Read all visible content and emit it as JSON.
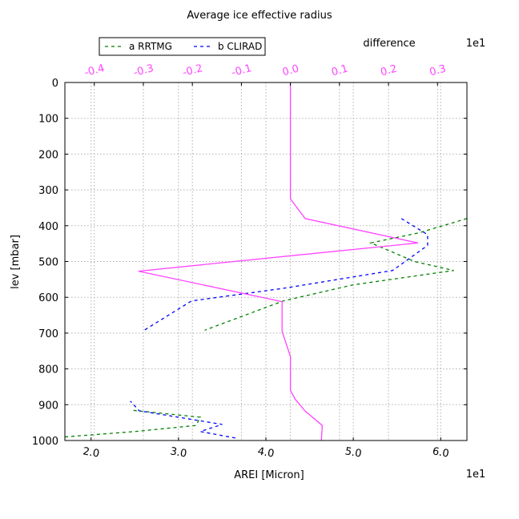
{
  "chart_data": {
    "type": "line",
    "title": "Average ice effective radius",
    "xlabel": "AREI [Micron]",
    "x_offset_text": "1e1",
    "ylabel": "lev [mbar]",
    "top_axis_label": "difference",
    "top_offset_text": "1e1",
    "xlim": [
      1.7,
      6.3
    ],
    "ylim": [
      1000,
      0
    ],
    "top_xlim": [
      -0.46,
      0.36
    ],
    "x_ticks": [
      2.0,
      3.0,
      4.0,
      5.0,
      6.0
    ],
    "x_tick_labels": [
      "2.0",
      "3.0",
      "4.0",
      "5.0",
      "6.0"
    ],
    "y_ticks": [
      0,
      100,
      200,
      300,
      400,
      500,
      600,
      700,
      800,
      900,
      1000
    ],
    "y_tick_labels": [
      "0",
      "100",
      "200",
      "300",
      "400",
      "500",
      "600",
      "700",
      "800",
      "900",
      "1000"
    ],
    "top_ticks": [
      -0.4,
      -0.3,
      -0.2,
      -0.1,
      0.0,
      0.1,
      0.2,
      0.3
    ],
    "top_tick_labels": [
      "-0.4",
      "-0.3",
      "-0.2",
      "-0.1",
      "0.0",
      "0.1",
      "0.2",
      "0.3"
    ],
    "grid": true,
    "legend_placement": "above plot, top-left",
    "series": [
      {
        "name": "a RRTMG",
        "color": "#008000",
        "style": "dashed",
        "axis": "bottom",
        "x": [
          6.3,
          5.75,
          5.2,
          5.7,
          6.15,
          5.0,
          4.2,
          3.3,
          null,
          1.7,
          2.5,
          3.2,
          3.25,
          2.45
        ],
        "y": [
          380,
          420,
          448,
          500,
          525,
          565,
          610,
          692,
          null,
          990,
          975,
          958,
          935,
          915
        ]
      },
      {
        "name": "b CLIRAD",
        "color": "#0000ff",
        "style": "dashed",
        "axis": "bottom",
        "x": [
          5.55,
          5.85,
          5.85,
          5.45,
          4.2,
          3.15,
          2.6,
          null,
          3.65,
          3.25,
          3.5,
          2.55,
          2.45
        ],
        "y": [
          380,
          425,
          455,
          525,
          575,
          610,
          693,
          null,
          993,
          975,
          955,
          917,
          890
        ]
      },
      {
        "name": "difference",
        "color": "#ff44ff",
        "style": "solid",
        "axis": "top",
        "x": [
          0.0,
          0.0,
          0.0,
          0.03,
          0.26,
          -0.31,
          -0.017,
          -0.017,
          0.0,
          0.0,
          0.01,
          0.03,
          0.065,
          0.063
        ],
        "y": [
          0,
          200,
          325,
          380,
          448,
          527,
          612,
          695,
          765,
          860,
          885,
          918,
          958,
          1000
        ]
      }
    ]
  }
}
